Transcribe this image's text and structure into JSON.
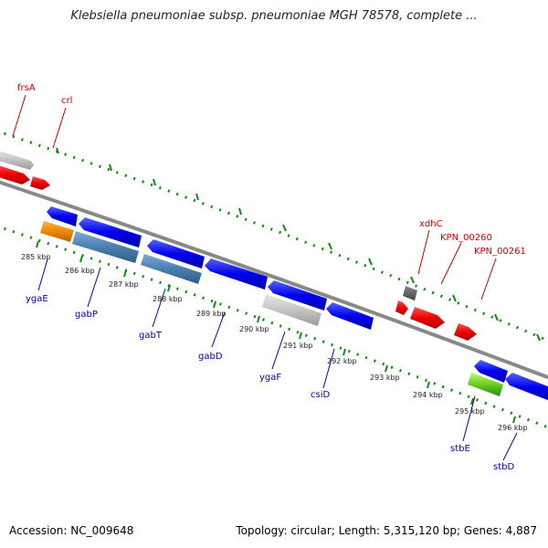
{
  "title": "Klebsiella pneumoniae subsp. pneumoniae MGH 78578, complete ...",
  "accession": "Accession: NC_009648",
  "topology": "Topology: circular; Length: 5,315,120 bp; Genes: 4,887",
  "colors": {
    "forward_gene": "#ee0000",
    "reverse_gene": "#0000ee",
    "pseudo_gene": "#bbbbbb",
    "dark_gene": "#555555",
    "steel_gene": "#4a7fb0",
    "orange_gene": "#ee8800",
    "green_gene": "#66cc22",
    "backbone": "#888888",
    "tick": "#118811",
    "forward_label": "#cc0000",
    "reverse_label": "#0000aa"
  },
  "scale_labels": [
    "285 kbp",
    "286 kbp",
    "287 kbp",
    "288 kbp",
    "289 kbp",
    "290 kbp",
    "291 kbp",
    "292 kbp",
    "293 kbp",
    "294 kbp",
    "295 kbp",
    "296 kbp"
  ],
  "forward_labels": [
    "frsA",
    "crl",
    "xdhC",
    "KPN_00260",
    "KPN_00261"
  ],
  "reverse_labels": [
    "ygaE",
    "gabP",
    "gabT",
    "gabD",
    "ygaF",
    "csiD",
    "stbE",
    "stbD"
  ]
}
